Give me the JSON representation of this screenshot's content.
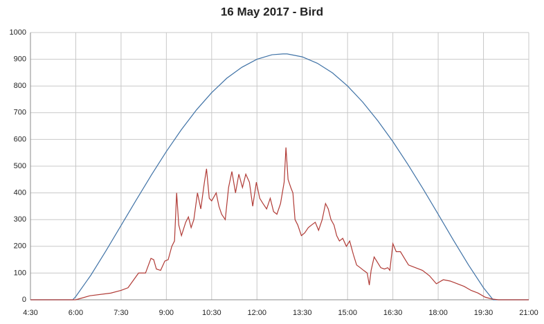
{
  "chart_data": {
    "type": "line",
    "title": "16 May 2017 - Bird",
    "xlim": [
      4.5,
      21
    ],
    "xticks": [
      {
        "value": 4.5,
        "label": "4:30"
      },
      {
        "value": 6,
        "label": "6:00"
      },
      {
        "value": 7.5,
        "label": "7:30"
      },
      {
        "value": 9,
        "label": "9:00"
      },
      {
        "value": 10.5,
        "label": "10:30"
      },
      {
        "value": 12,
        "label": "12:00"
      },
      {
        "value": 13.5,
        "label": "13:30"
      },
      {
        "value": 15,
        "label": "15:00"
      },
      {
        "value": 16.5,
        "label": "16:30"
      },
      {
        "value": 18,
        "label": "18:00"
      },
      {
        "value": 19.5,
        "label": "19:30"
      },
      {
        "value": 21,
        "label": "21:00"
      }
    ],
    "ylim": [
      0,
      1000
    ],
    "yticks": [
      0,
      100,
      200,
      300,
      400,
      500,
      600,
      700,
      800,
      900,
      1000
    ],
    "grid": true,
    "series": [
      {
        "color": "#3f72a6",
        "x": [
          4.5,
          5.9,
          6,
          6.5,
          7,
          7.5,
          8,
          8.5,
          9,
          9.5,
          10,
          10.5,
          11,
          11.5,
          12,
          12.5,
          12.86,
          13,
          13.5,
          14,
          14.5,
          15,
          15.5,
          16,
          16.5,
          17,
          17.5,
          18,
          18.5,
          19,
          19.5,
          19.82,
          21
        ],
        "values": [
          0,
          0,
          12,
          92,
          183,
          278,
          373,
          466,
          555,
          637,
          711,
          775,
          829,
          870,
          900,
          917,
          920,
          920,
          909,
          885,
          849,
          800,
          740,
          670,
          592,
          506,
          415,
          320,
          224,
          131,
          45,
          0,
          0
        ]
      },
      {
        "color": "#b03a35",
        "x": [
          4.5,
          6.0,
          6.47,
          7.16,
          7.5,
          7.73,
          8.08,
          8.31,
          8.49,
          8.58,
          8.67,
          8.81,
          8.95,
          9.06,
          9.18,
          9.27,
          9.34,
          9.41,
          9.5,
          9.64,
          9.73,
          9.82,
          9.91,
          10.03,
          10.14,
          10.26,
          10.33,
          10.42,
          10.5,
          10.65,
          10.74,
          10.83,
          10.95,
          11.06,
          11.17,
          11.29,
          11.4,
          11.52,
          11.63,
          11.75,
          11.86,
          11.98,
          12.09,
          12.2,
          12.32,
          12.44,
          12.55,
          12.66,
          12.78,
          12.9,
          12.96,
          13.03,
          13.12,
          13.19,
          13.26,
          13.35,
          13.47,
          13.58,
          13.7,
          13.81,
          13.93,
          14.04,
          14.16,
          14.27,
          14.36,
          14.45,
          14.55,
          14.64,
          14.73,
          14.84,
          14.96,
          15.07,
          15.19,
          15.3,
          15.42,
          15.53,
          15.65,
          15.72,
          15.78,
          15.88,
          15.99,
          16.1,
          16.22,
          16.33,
          16.4,
          16.5,
          16.61,
          16.75,
          16.91,
          17.02,
          17.25,
          17.48,
          17.71,
          17.94,
          18.17,
          18.4,
          18.63,
          18.86,
          19.09,
          19.32,
          19.55,
          19.77,
          20.0,
          21
        ],
        "values": [
          0,
          0,
          15,
          25,
          35,
          45,
          100,
          100,
          155,
          150,
          115,
          110,
          145,
          150,
          200,
          220,
          400,
          280,
          240,
          290,
          310,
          270,
          300,
          400,
          340,
          440,
          490,
          380,
          370,
          400,
          350,
          320,
          300,
          420,
          480,
          400,
          470,
          420,
          470,
          440,
          350,
          440,
          380,
          360,
          340,
          380,
          330,
          320,
          360,
          440,
          570,
          450,
          420,
          400,
          300,
          280,
          240,
          250,
          270,
          280,
          290,
          260,
          300,
          360,
          340,
          300,
          280,
          240,
          220,
          230,
          200,
          220,
          170,
          130,
          120,
          110,
          100,
          55,
          110,
          160,
          140,
          120,
          115,
          120,
          110,
          210,
          180,
          180,
          150,
          130,
          120,
          110,
          90,
          60,
          75,
          70,
          60,
          50,
          35,
          25,
          10,
          3,
          0,
          0
        ]
      }
    ]
  }
}
